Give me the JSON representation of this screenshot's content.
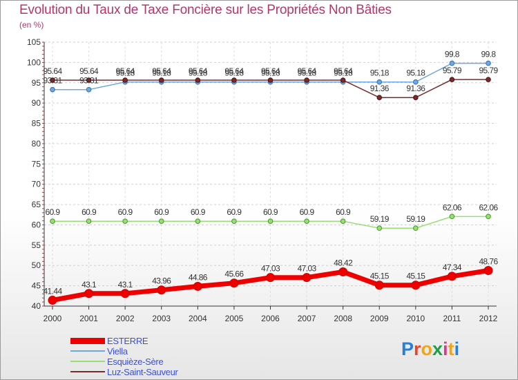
{
  "title": "Evolution du Taux de Taxe Foncière sur les Propriétés Non Bâties",
  "subtitle": "(en %)",
  "logo_text": "Proxiti",
  "chart_data": {
    "type": "line",
    "title": "Evolution du Taux de Taxe Foncière sur les Propriétés Non Bâties",
    "ylabel": "(en %)",
    "xlabel": "",
    "x": [
      2000,
      2001,
      2002,
      2003,
      2004,
      2005,
      2006,
      2007,
      2008,
      2009,
      2010,
      2011,
      2012
    ],
    "x_tick_labels": [
      "2000",
      "2001",
      "2002",
      "2003",
      "2004",
      "2005",
      "2006",
      "2007",
      "2008",
      "2009",
      "2010",
      "2011",
      "2012"
    ],
    "ylim": [
      40,
      105
    ],
    "y_ticks": [
      40,
      45,
      50,
      55,
      60,
      65,
      70,
      75,
      80,
      85,
      90,
      95,
      100,
      105
    ],
    "y_tick_labels": [
      "40",
      "45",
      "50",
      "55",
      "60",
      "65",
      "70",
      "75",
      "80",
      "85",
      "90",
      "95",
      "100",
      "105"
    ],
    "legend_position": "bottom-left",
    "series": [
      {
        "name": "ESTERRE",
        "color": "#ee0000",
        "values": [
          41.44,
          43.1,
          43.1,
          43.96,
          44.86,
          45.66,
          47.03,
          47.03,
          48.42,
          45.15,
          45.15,
          47.34,
          48.76
        ],
        "labels": [
          "41.44",
          "43.1",
          "43.1",
          "43.96",
          "44.86",
          "45.66",
          "47.03",
          "47.03",
          "48.42",
          "45.15",
          "45.15",
          "47.34",
          "48.76"
        ]
      },
      {
        "name": "Viella",
        "color": "#6fa8dc",
        "values": [
          93.31,
          93.31,
          95.18,
          95.18,
          95.18,
          95.18,
          95.18,
          95.18,
          95.18,
          95.18,
          95.18,
          99.8,
          99.8
        ],
        "labels": [
          "93.31",
          "93.31",
          "95.18",
          "95.18",
          "95.18",
          "95.18",
          "95.18",
          "95.18",
          "95.18",
          "95.18",
          "95.18",
          "99.8",
          "99.8"
        ]
      },
      {
        "name": "Esquièze-Sère",
        "color": "#99dd77",
        "values": [
          60.9,
          60.9,
          60.9,
          60.9,
          60.9,
          60.9,
          60.9,
          60.9,
          60.9,
          59.19,
          59.19,
          62.06,
          62.06
        ],
        "labels": [
          "60.9",
          "60.9",
          "60.9",
          "60.9",
          "60.9",
          "60.9",
          "60.9",
          "60.9",
          "60.9",
          "59.19",
          "59.19",
          "62.06",
          "62.06"
        ]
      },
      {
        "name": "Luz-Saint-Sauveur",
        "color": "#7a2a2a",
        "values": [
          95.64,
          95.64,
          95.64,
          95.64,
          95.64,
          95.64,
          95.64,
          95.64,
          95.64,
          91.36,
          91.36,
          95.79,
          95.79
        ],
        "labels": [
          "95.64",
          "95.64",
          "95.64",
          "95.64",
          "95.64",
          "95.64",
          "95.64",
          "95.64",
          "95.64",
          "91.36",
          "91.36",
          "95.79",
          "95.79"
        ]
      }
    ]
  }
}
